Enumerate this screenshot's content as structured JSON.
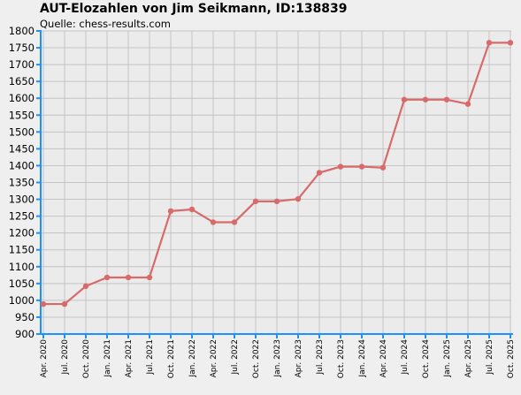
{
  "chart_data": {
    "type": "line",
    "title": "AUT-Elozahlen von Jim Seikmann, ID:138839",
    "subtitle": "Quelle: chess-results.com",
    "xlabel": "",
    "ylabel": "",
    "ylim": [
      900,
      1800
    ],
    "yticks": [
      900,
      950,
      1000,
      1050,
      1100,
      1150,
      1200,
      1250,
      1300,
      1350,
      1400,
      1450,
      1500,
      1550,
      1600,
      1650,
      1700,
      1750,
      1800
    ],
    "grid": true,
    "legend": "none",
    "colors": {
      "line": "#d86a6a",
      "grid": "#c4c4c4",
      "axis": "#1e90ff",
      "plot_background": "#ebebeb"
    },
    "categories": [
      "Apr. 2020",
      "Jul. 2020",
      "Oct. 2020",
      "Jan. 2021",
      "Apr. 2021",
      "Jul. 2021",
      "Oct. 2021",
      "Jan. 2022",
      "Apr. 2022",
      "Jul. 2022",
      "Oct. 2022",
      "Jan. 2023",
      "Apr. 2023",
      "Jul. 2023",
      "Oct. 2023",
      "Jan. 2024",
      "Apr. 2024",
      "Jul. 2024",
      "Oct. 2024",
      "Jan. 2025",
      "Apr. 2025",
      "Jul. 2025",
      "Oct. 2025"
    ],
    "series": [
      {
        "values": [
          989,
          989,
          1042,
          1068,
          1068,
          1068,
          1265,
          1270,
          1232,
          1232,
          1294,
          1294,
          1301,
          1379,
          1397,
          1397,
          1394,
          1596,
          1596,
          1596,
          1583,
          1765,
          1765
        ]
      }
    ]
  }
}
